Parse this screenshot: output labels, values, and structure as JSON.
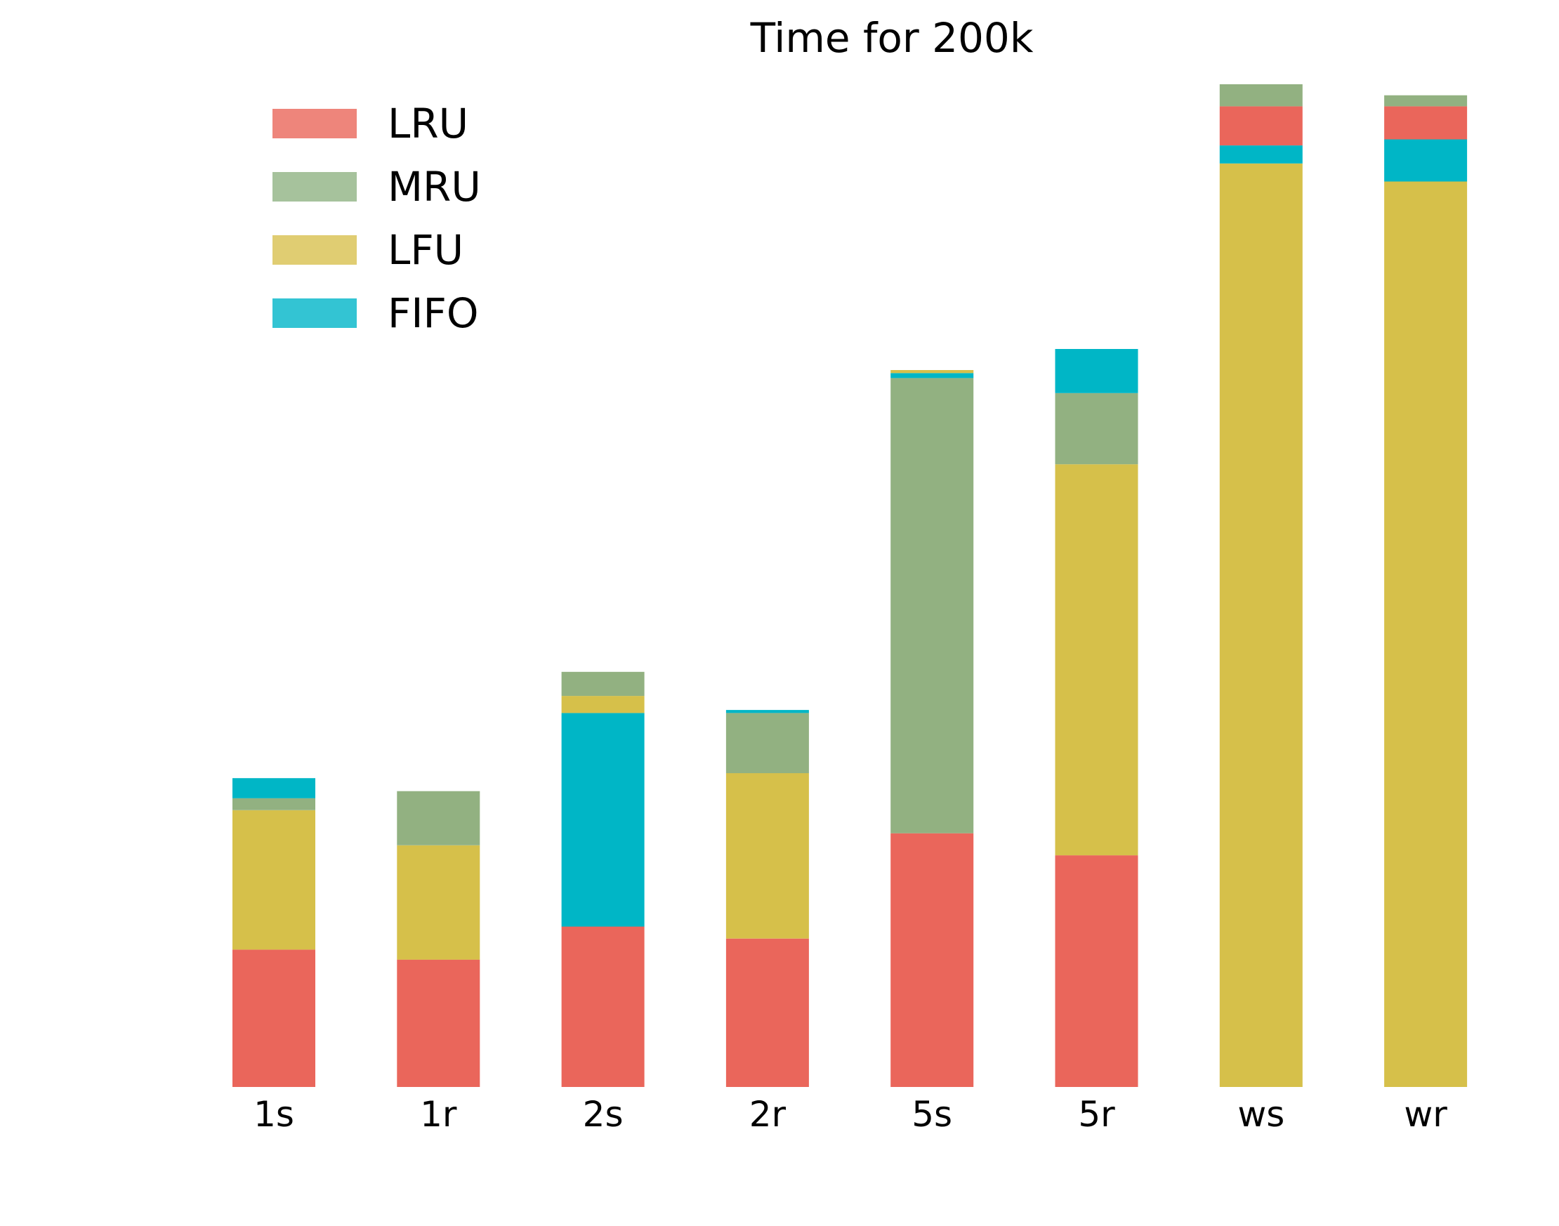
{
  "chart_data": {
    "type": "bar",
    "stacked": true,
    "title": "Time for 200k",
    "xlabel": "",
    "ylabel": "",
    "categories": [
      "1s",
      "1r",
      "2s",
      "2r",
      "5s",
      "5r",
      "ws",
      "wr"
    ],
    "ylim": [
      0,
      1000
    ],
    "axes_visible": false,
    "grid": false,
    "legend_position": "top-left",
    "legend": [
      {
        "name": "LRU",
        "color": "#ee857b"
      },
      {
        "name": "MRU",
        "color": "#a6c29c"
      },
      {
        "name": "LFU",
        "color": "#e0cd72"
      },
      {
        "name": "FIFO",
        "color": "#33c4d3"
      }
    ],
    "stacks": [
      {
        "category": "1s",
        "segments": [
          {
            "series": "LRU",
            "value": 137,
            "color": "#ea665b"
          },
          {
            "series": "LFU",
            "value": 139,
            "color": "#d6c04a"
          },
          {
            "series": "MRU",
            "value": 12,
            "color": "#92b181"
          },
          {
            "series": "FIFO",
            "value": 20,
            "color": "#00b6c6"
          }
        ]
      },
      {
        "category": "1r",
        "segments": [
          {
            "series": "LRU",
            "value": 127,
            "color": "#ea665b"
          },
          {
            "series": "LFU",
            "value": 114,
            "color": "#d6c04a"
          },
          {
            "series": "MRU",
            "value": 54,
            "color": "#92b181"
          }
        ]
      },
      {
        "category": "2s",
        "segments": [
          {
            "series": "LRU",
            "value": 160,
            "color": "#ea665b"
          },
          {
            "series": "FIFO",
            "value": 213,
            "color": "#00b6c6"
          },
          {
            "series": "LFU",
            "value": 17,
            "color": "#d6c04a"
          },
          {
            "series": "MRU",
            "value": 24,
            "color": "#92b181"
          }
        ]
      },
      {
        "category": "2r",
        "segments": [
          {
            "series": "LRU",
            "value": 148,
            "color": "#ea665b"
          },
          {
            "series": "LFU",
            "value": 165,
            "color": "#d6c04a"
          },
          {
            "series": "MRU",
            "value": 60,
            "color": "#92b181"
          },
          {
            "series": "FIFO",
            "value": 3,
            "color": "#00b6c6"
          }
        ]
      },
      {
        "category": "5s",
        "segments": [
          {
            "series": "LRU",
            "value": 253,
            "color": "#ea665b"
          },
          {
            "series": "MRU",
            "value": 454,
            "color": "#92b181"
          },
          {
            "series": "FIFO",
            "value": 5,
            "color": "#00b6c6"
          },
          {
            "series": "LFU",
            "value": 3,
            "color": "#d6c04a"
          }
        ]
      },
      {
        "category": "5r",
        "segments": [
          {
            "series": "LRU",
            "value": 231,
            "color": "#ea665b"
          },
          {
            "series": "LFU",
            "value": 390,
            "color": "#d6c04a"
          },
          {
            "series": "MRU",
            "value": 71,
            "color": "#92b181"
          },
          {
            "series": "FIFO",
            "value": 44,
            "color": "#00b6c6"
          }
        ]
      },
      {
        "category": "ws",
        "segments": [
          {
            "series": "LFU",
            "value": 921,
            "color": "#d6c04a"
          },
          {
            "series": "FIFO",
            "value": 18,
            "color": "#00b6c6"
          },
          {
            "series": "LRU",
            "value": 39,
            "color": "#ea665b"
          },
          {
            "series": "MRU",
            "value": 22,
            "color": "#92b181"
          }
        ]
      },
      {
        "category": "wr",
        "segments": [
          {
            "series": "LFU",
            "value": 903,
            "color": "#d6c04a"
          },
          {
            "series": "FIFO",
            "value": 42,
            "color": "#00b6c6"
          },
          {
            "series": "LRU",
            "value": 33,
            "color": "#ea665b"
          },
          {
            "series": "MRU",
            "value": 11,
            "color": "#92b181"
          }
        ]
      }
    ]
  }
}
